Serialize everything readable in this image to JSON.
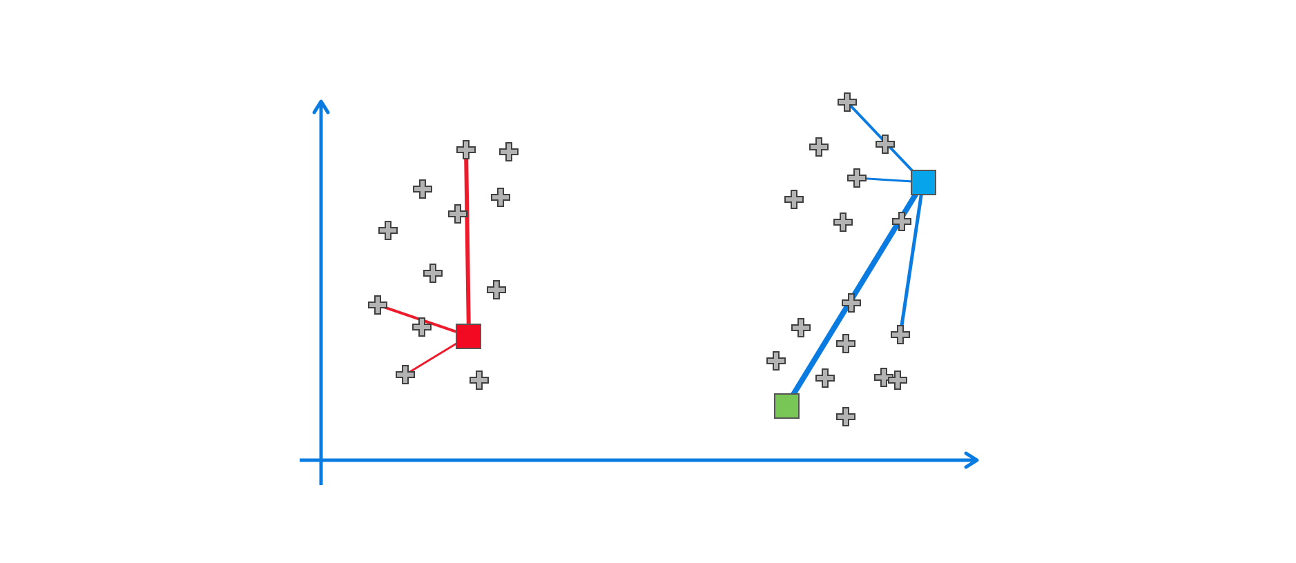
{
  "diagram": {
    "kind": "clustering-illustration",
    "colors": {
      "axis": "#0A7BE0",
      "point_fill": "#B3B3B3",
      "point_stroke": "#404040",
      "red_centroid": "#F20A23",
      "blue_centroid": "#06A4EA",
      "green_centroid": "#77C656",
      "red_link": "#EE1B2D",
      "blue_link": "#0A7BE0"
    },
    "axes": {
      "x_arrow": true,
      "y_arrow": true
    },
    "data_points": [
      "cross-icon",
      "cross-icon",
      "cross-icon",
      "cross-icon",
      "cross-icon",
      "cross-icon",
      "cross-icon",
      "cross-icon",
      "cross-icon",
      "cross-icon",
      "cross-icon",
      "cross-icon",
      "cross-icon",
      "cross-icon",
      "cross-icon",
      "cross-icon",
      "cross-icon",
      "cross-icon",
      "cross-icon",
      "cross-icon",
      "cross-icon",
      "cross-icon",
      "cross-icon",
      "cross-icon",
      "cross-icon",
      "cross-icon",
      "cross-icon",
      "cross-icon"
    ],
    "centroids": [
      {
        "id": "red",
        "icon": "square-icon"
      },
      {
        "id": "blue",
        "icon": "square-icon"
      },
      {
        "id": "green",
        "icon": "square-icon"
      }
    ]
  }
}
